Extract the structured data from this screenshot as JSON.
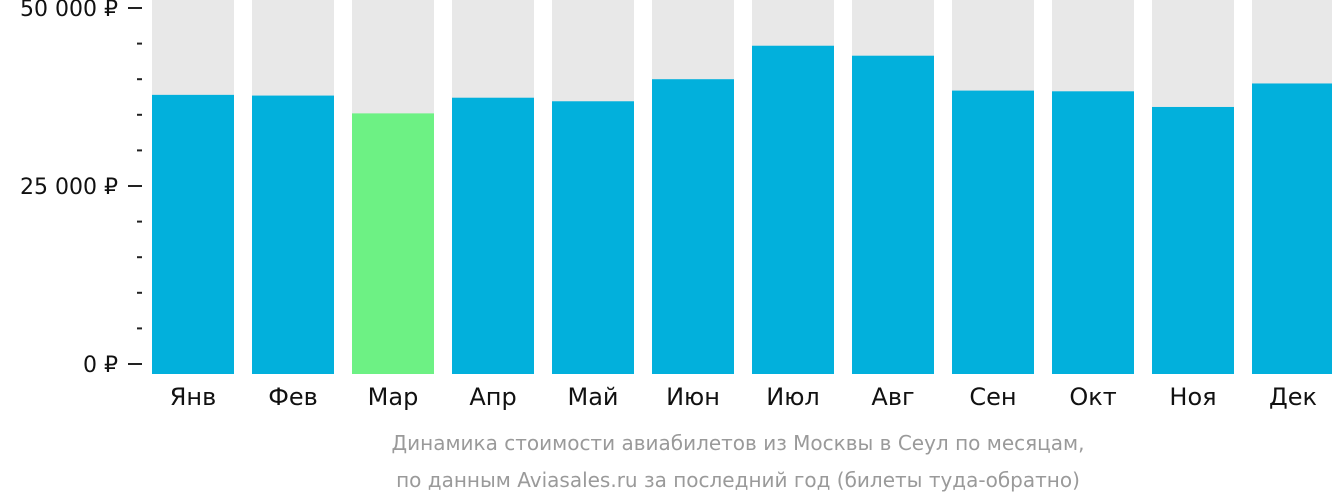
{
  "chart_data": {
    "type": "bar",
    "categories": [
      "Янв",
      "Фев",
      "Мар",
      "Апр",
      "Май",
      "Июн",
      "Июл",
      "Авг",
      "Сен",
      "Окт",
      "Ноя",
      "Дек"
    ],
    "values": [
      37800,
      37700,
      35200,
      37400,
      36900,
      40000,
      44700,
      43300,
      38400,
      38300,
      36100,
      39400
    ],
    "ylim": [
      0,
      52000
    ],
    "y_ticks": [
      {
        "value": 0,
        "label": "0 ₽"
      },
      {
        "value": 25000,
        "label": "25 000 ₽"
      },
      {
        "value": 50000,
        "label": "50 000 ₽"
      }
    ],
    "minor_tick_step": 5000,
    "highlight_index": 2,
    "caption_line1": "Динамика стоимости авиабилетов из Москвы в Сеул по месяцам,",
    "caption_line2": "по данным Aviasales.ru за последний год (билеты туда-обратно)",
    "colors": {
      "bar": "#02b0dc",
      "highlight": "#6df184",
      "background_bar": "#e8e8e8",
      "axis": "#222222",
      "caption": "#9a9a9a"
    }
  }
}
